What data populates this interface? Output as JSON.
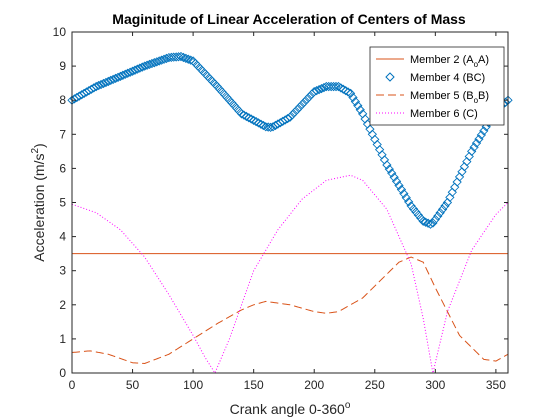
{
  "chart_data": {
    "type": "line",
    "title": "Maginitude of Linear Acceleration of Centers of Mass",
    "xlabel": "Crank angle 0-360",
    "xlabel_sup": "o",
    "ylabel": "Acceleration (m/s",
    "ylabel_sup": "2",
    "ylabel_end": ")",
    "xlim": [
      0,
      360
    ],
    "ylim": [
      0,
      10
    ],
    "xticks": [
      0,
      50,
      100,
      150,
      200,
      250,
      300,
      350
    ],
    "yticks": [
      0,
      1,
      2,
      3,
      4,
      5,
      6,
      7,
      8,
      9,
      10
    ],
    "grid": false,
    "legend_position": "top-right",
    "series": [
      {
        "name": "Member 2 (A",
        "name_sub": "o",
        "name_end": "A)",
        "color": "#d95319",
        "line": "solid",
        "marker": "none",
        "x": [
          0,
          360
        ],
        "y": [
          3.5,
          3.5
        ]
      },
      {
        "name": "Member 4 (BC)",
        "color": "#0072bd",
        "line": "none",
        "marker": "diamond",
        "x": [
          0,
          20,
          40,
          60,
          80,
          90,
          100,
          120,
          140,
          160,
          165,
          180,
          200,
          210,
          220,
          230,
          240,
          260,
          280,
          290,
          297,
          310,
          330,
          350,
          360
        ],
        "y": [
          8.0,
          8.4,
          8.7,
          9.0,
          9.25,
          9.28,
          9.15,
          8.4,
          7.6,
          7.22,
          7.2,
          7.5,
          8.25,
          8.4,
          8.4,
          8.2,
          7.6,
          6.1,
          4.9,
          4.45,
          4.35,
          5.0,
          6.5,
          7.7,
          8.0
        ]
      },
      {
        "name": "Member 5 (B",
        "name_sub": "o",
        "name_end": "B)",
        "color": "#d95319",
        "line": "dashed",
        "marker": "none",
        "x": [
          0,
          15,
          30,
          50,
          60,
          80,
          100,
          120,
          140,
          150,
          160,
          180,
          200,
          210,
          220,
          240,
          260,
          270,
          280,
          290,
          300,
          320,
          340,
          350,
          360
        ],
        "y": [
          0.6,
          0.65,
          0.55,
          0.3,
          0.28,
          0.55,
          1.0,
          1.45,
          1.85,
          2.0,
          2.1,
          2.0,
          1.8,
          1.75,
          1.8,
          2.2,
          2.9,
          3.25,
          3.4,
          3.25,
          2.5,
          1.1,
          0.4,
          0.35,
          0.55
        ]
      },
      {
        "name": "Member 6 (C)",
        "color": "#ff00ff",
        "line": "dotted",
        "marker": "none",
        "x": [
          0,
          20,
          40,
          60,
          80,
          100,
          110,
          118,
          130,
          150,
          170,
          190,
          210,
          230,
          240,
          260,
          280,
          290,
          298,
          310,
          330,
          350,
          360
        ],
        "y": [
          4.95,
          4.7,
          4.2,
          3.4,
          2.3,
          1.1,
          0.45,
          0.0,
          1.0,
          3.0,
          4.2,
          5.1,
          5.65,
          5.8,
          5.65,
          4.8,
          3.2,
          1.6,
          0.0,
          1.8,
          3.6,
          4.65,
          5.0
        ]
      }
    ]
  }
}
